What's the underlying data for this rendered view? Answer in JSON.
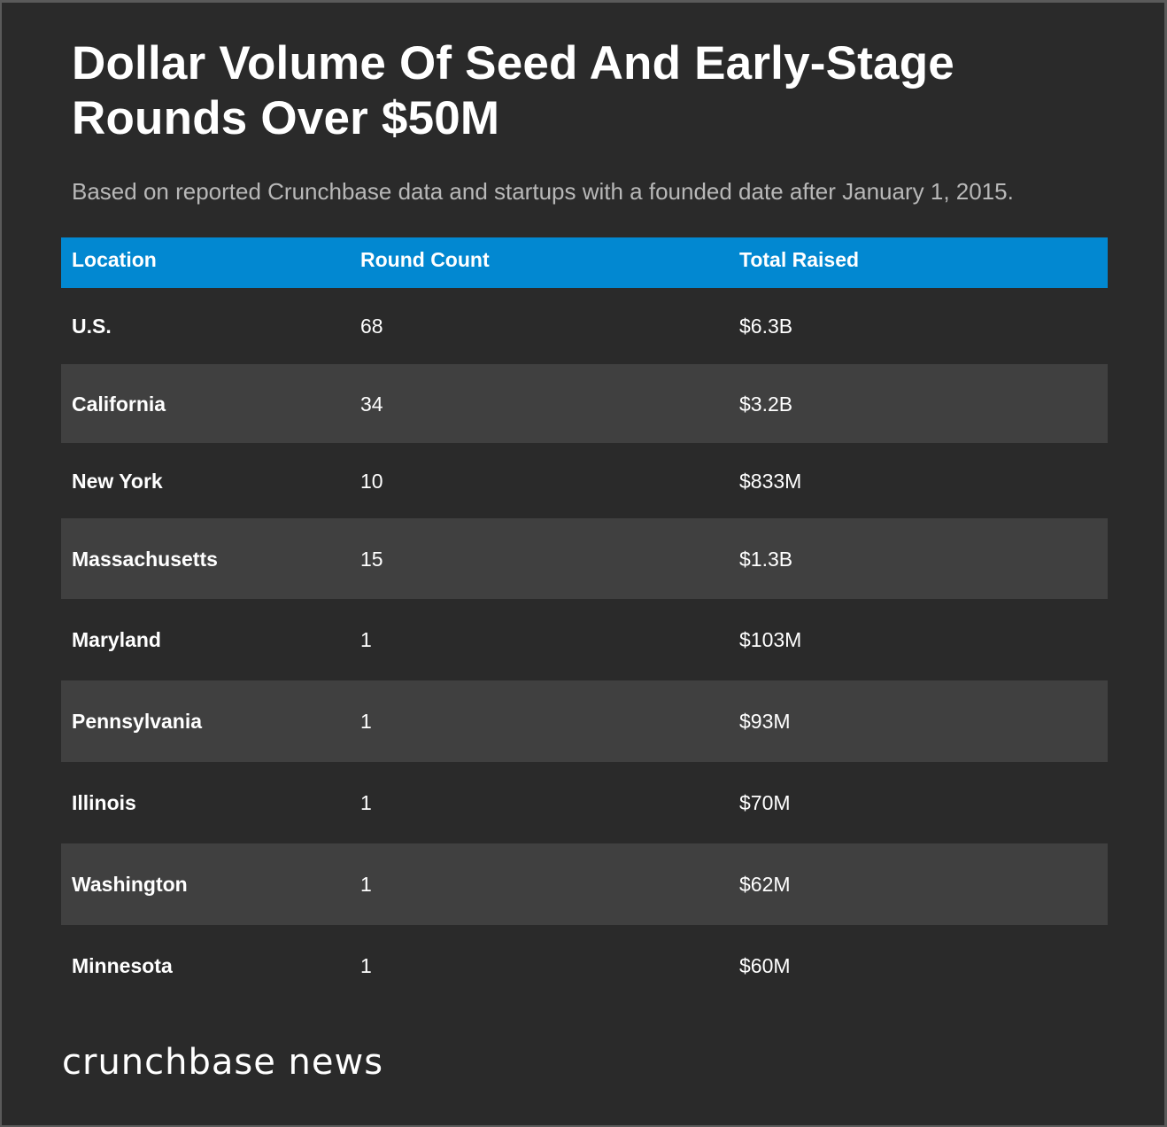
{
  "chart_data": {
    "type": "table",
    "title": "Dollar Volume Of Seed And Early-Stage Rounds Over $50M",
    "subtitle": "Based on reported Crunchbase data and startups with a founded date after January 1, 2015.",
    "columns": [
      "Location",
      "Round Count",
      "Total Raised"
    ],
    "rows": [
      {
        "location": "U.S.",
        "round_count": "68",
        "total_raised": "$6.3B"
      },
      {
        "location": "California",
        "round_count": "34",
        "total_raised": "$3.2B"
      },
      {
        "location": "New York",
        "round_count": "10",
        "total_raised": "$833M"
      },
      {
        "location": "Massachusetts",
        "round_count": "15",
        "total_raised": "$1.3B"
      },
      {
        "location": "Maryland",
        "round_count": "1",
        "total_raised": "$103M"
      },
      {
        "location": "Pennsylvania",
        "round_count": "1",
        "total_raised": "$93M"
      },
      {
        "location": "Illinois",
        "round_count": "1",
        "total_raised": "$70M"
      },
      {
        "location": "Washington",
        "round_count": "1",
        "total_raised": "$62M"
      },
      {
        "location": "Minnesota",
        "round_count": "1",
        "total_raised": "$60M"
      }
    ]
  },
  "branding": {
    "logo_text": "crunchbase news"
  },
  "colors": {
    "background": "#2a2a2a",
    "header_background": "#0288d1",
    "alt_row_background": "#404040",
    "text": "#ffffff",
    "subtitle_text": "#b8b8b8"
  }
}
